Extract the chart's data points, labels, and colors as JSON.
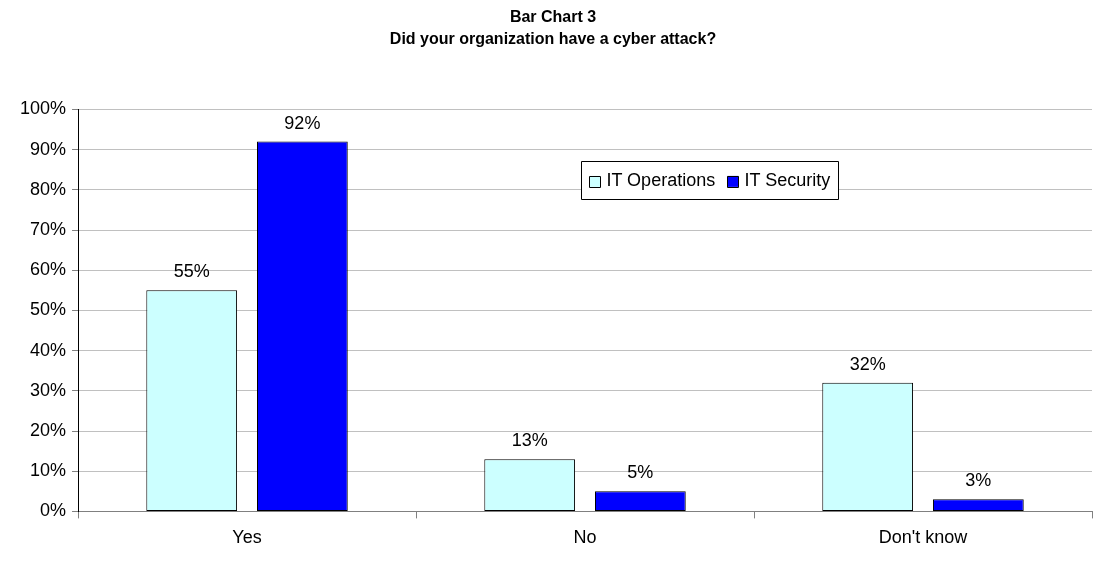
{
  "chart_data": {
    "type": "bar",
    "title": "Bar Chart 3",
    "subtitle": "Did your organization have a cyber attack?",
    "categories": [
      "Yes",
      "No",
      "Don't know"
    ],
    "series": [
      {
        "name": "IT Operations",
        "color": "#ccffff",
        "values": [
          55,
          13,
          32
        ],
        "value_labels": [
          "55%",
          "13%",
          "32%"
        ]
      },
      {
        "name": "IT Security",
        "color": "#0000ff",
        "values": [
          92,
          5,
          3
        ],
        "value_labels": [
          "92%",
          "5%",
          "3%"
        ]
      }
    ],
    "ylim": [
      0,
      100
    ],
    "yticks": [
      {
        "value": 0,
        "label": "0%"
      },
      {
        "value": 10,
        "label": "10%"
      },
      {
        "value": 20,
        "label": "20%"
      },
      {
        "value": 30,
        "label": "30%"
      },
      {
        "value": 40,
        "label": "40%"
      },
      {
        "value": 50,
        "label": "50%"
      },
      {
        "value": 60,
        "label": "60%"
      },
      {
        "value": 70,
        "label": "70%"
      },
      {
        "value": 80,
        "label": "80%"
      },
      {
        "value": 90,
        "label": "90%"
      },
      {
        "value": 100,
        "label": "100%"
      }
    ],
    "grid": "y",
    "legend": "top right"
  }
}
